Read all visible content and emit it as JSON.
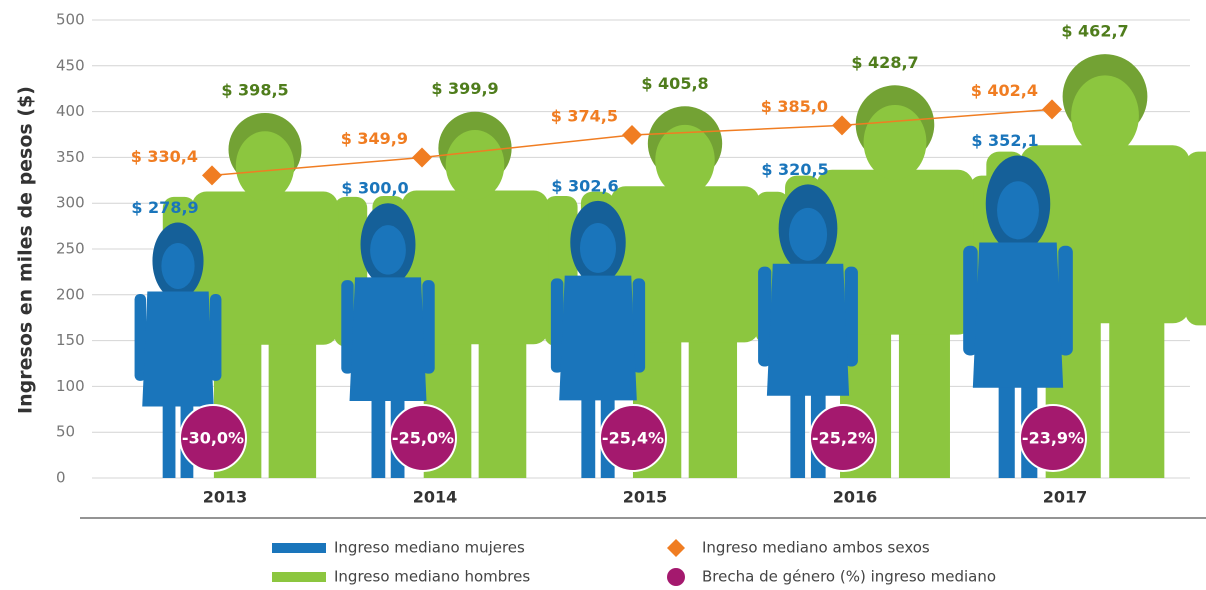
{
  "chart_data": {
    "type": "pictogram",
    "y_label": "Ingresos en miles de pesos ($)",
    "categories": [
      "2013",
      "2014",
      "2015",
      "2016",
      "2017"
    ],
    "ylim": [
      0,
      500
    ],
    "yticks": [
      0,
      50,
      100,
      150,
      200,
      250,
      300,
      350,
      400,
      450,
      500
    ],
    "grid": true,
    "series": [
      {
        "name": "Ingreso mediano mujeres",
        "color": "#1a75bb",
        "values": [
          278.9,
          300.0,
          302.6,
          320.5,
          352.1
        ],
        "value_labels": [
          "$ 278,9",
          "$ 300,0",
          "$ 302,6",
          "$ 320,5",
          "$ 352,1"
        ]
      },
      {
        "name": "Ingreso mediano hombres",
        "color": "#8cc63f",
        "values": [
          398.5,
          399.9,
          405.8,
          428.7,
          462.7
        ],
        "value_labels": [
          "$ 398,5",
          "$ 399,9",
          "$ 405,8",
          "$ 428,7",
          "$ 462,7"
        ]
      },
      {
        "name": "Ingreso mediano ambos sexos",
        "color": "#f07d22",
        "values": [
          330.4,
          349.9,
          374.5,
          385.0,
          402.4
        ],
        "value_labels": [
          "$ 330,4",
          "$ 349,9",
          "$ 374,5",
          "$ 385,0",
          "$ 402,4"
        ]
      },
      {
        "name": "Brecha de género (%) ingreso mediano",
        "color": "#a4196e",
        "values": [
          -30.0,
          -25.0,
          -25.4,
          -25.2,
          -23.9
        ],
        "value_labels": [
          "-30,0%",
          "-25,0%",
          "-25,4%",
          "-25,2%",
          "-23,9%"
        ]
      }
    ]
  }
}
